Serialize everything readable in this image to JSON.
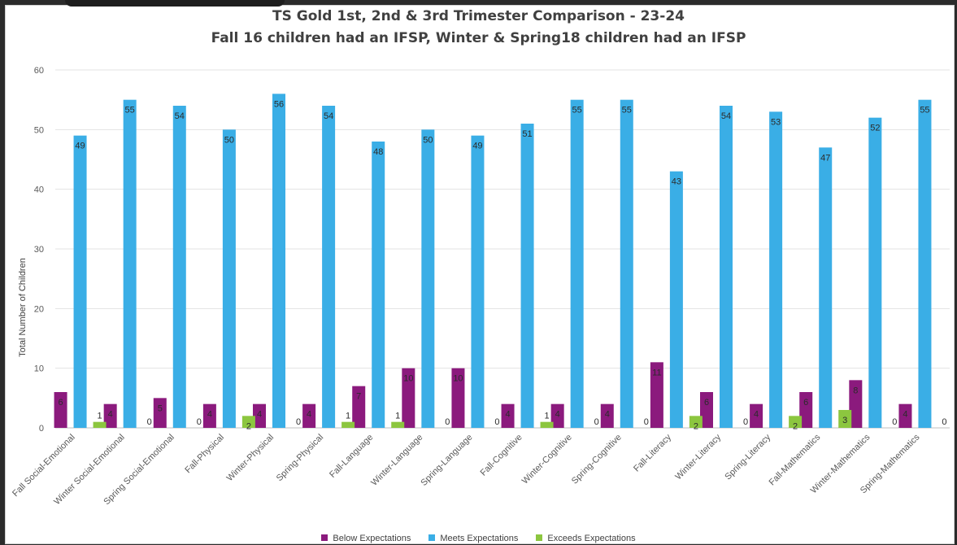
{
  "chart_data": {
    "type": "bar",
    "title": "TS Gold 1st, 2nd & 3rd Trimester Comparison - 23-24",
    "subtitle": "Fall 16 children had an IFSP, Winter & Spring18 children had an IFSP",
    "xlabel": "",
    "ylabel": "Total Number of Children",
    "ylim": [
      0,
      60
    ],
    "yticks": [
      0,
      10,
      20,
      30,
      40,
      50,
      60
    ],
    "grid": true,
    "legend_position": "bottom",
    "categories": [
      "Fall Social-Emotional",
      "Winter Social-Emotional",
      "Spring Social-Emotional",
      "Fall-Physical",
      "Winter-Physical",
      "Spring-Physical",
      "Fall-Language",
      "Winter-Language",
      "Spring-Language",
      "Fall-Cognitive",
      "Winter-Cognitive",
      "Spring-Cognitive",
      "Fall-Literacy",
      "Winter-Literacy",
      "Spring-Literacy",
      "Fall-Mathematics",
      "Winter-Mathematics",
      "Spring-Mathematics"
    ],
    "series": [
      {
        "name": "Below Expectations",
        "color": "#8b1a7d",
        "values": [
          6,
          4,
          5,
          4,
          4,
          4,
          7,
          10,
          10,
          4,
          4,
          4,
          11,
          6,
          4,
          6,
          8,
          4
        ]
      },
      {
        "name": "Meets Expectations",
        "color": "#3aaee6",
        "values": [
          49,
          55,
          54,
          50,
          56,
          54,
          48,
          50,
          49,
          51,
          55,
          55,
          43,
          54,
          53,
          47,
          52,
          55
        ]
      },
      {
        "name": "Exceeds Expectations",
        "color": "#8cc63f",
        "values": [
          1,
          0,
          0,
          2,
          0,
          1,
          1,
          0,
          0,
          1,
          0,
          0,
          2,
          0,
          2,
          3,
          0,
          0
        ]
      }
    ]
  }
}
